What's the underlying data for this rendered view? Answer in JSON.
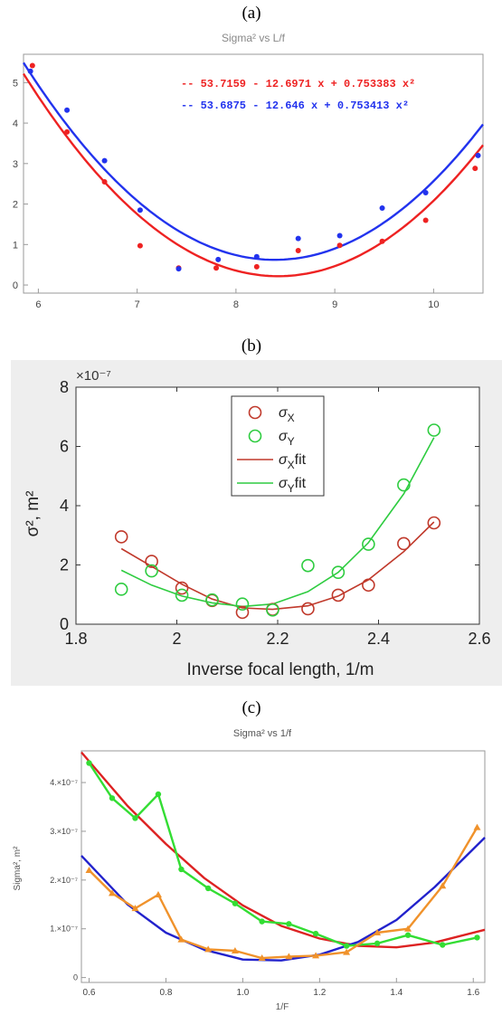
{
  "panel_labels": [
    "(a)",
    "(b)",
    "(c)"
  ],
  "chart_data": [
    {
      "type": "scatter",
      "title": "Sigma² vs L/f",
      "xlim": [
        5.85,
        10.5
      ],
      "ylim": [
        -0.2,
        5.7
      ],
      "xticks": [
        "6",
        "7",
        "8",
        "9",
        "10"
      ],
      "yticks": [
        "0",
        "1",
        "2",
        "3",
        "4",
        "5"
      ],
      "grid": false,
      "annotation_position": "top-right",
      "series": [
        {
          "color": "#ee2222",
          "fit_label": "-- 53.7159 - 12.6971 x + 0.753383 x²",
          "fit": [
            53.7159,
            -12.6971,
            0.753383
          ],
          "points": [
            [
              5.94,
              5.42
            ],
            [
              6.29,
              3.78
            ],
            [
              6.67,
              2.55
            ],
            [
              7.03,
              0.97
            ],
            [
              7.42,
              0.42
            ],
            [
              7.8,
              0.42
            ],
            [
              8.21,
              0.45
            ],
            [
              8.63,
              0.85
            ],
            [
              9.05,
              0.98
            ],
            [
              9.48,
              1.08
            ],
            [
              9.92,
              1.6
            ],
            [
              10.42,
              2.88
            ]
          ]
        },
        {
          "color": "#2233ee",
          "fit_label": "-- 53.6875 - 12.646 x + 0.753413 x²",
          "fit": [
            53.6875,
            -12.646,
            0.753413
          ],
          "points": [
            [
              5.92,
              5.28
            ],
            [
              6.29,
              4.32
            ],
            [
              6.67,
              3.07
            ],
            [
              7.03,
              1.85
            ],
            [
              7.42,
              0.4
            ],
            [
              7.82,
              0.63
            ],
            [
              8.21,
              0.7
            ],
            [
              8.63,
              1.15
            ],
            [
              9.05,
              1.22
            ],
            [
              9.48,
              1.9
            ],
            [
              9.92,
              2.28
            ],
            [
              10.45,
              3.2
            ]
          ]
        }
      ]
    },
    {
      "type": "scatter",
      "xlabel": "Inverse focal length, 1/m",
      "ylabel": "σ², m²",
      "multiplier": "×10⁻⁷",
      "xlim": [
        1.8,
        2.6
      ],
      "ylim": [
        0,
        8
      ],
      "xticks": [
        "1.8",
        "2",
        "2.2",
        "2.4",
        "2.6"
      ],
      "yticks": [
        "0",
        "2",
        "4",
        "6",
        "8"
      ],
      "grid": false,
      "legend_position": "top-center",
      "legend": [
        "σX",
        "σY",
        "σXfit",
        "σYfit"
      ],
      "series": [
        {
          "name": "σX",
          "color": "#c0392b",
          "points": [
            [
              1.89,
              2.95
            ],
            [
              1.95,
              2.12
            ],
            [
              2.01,
              1.22
            ],
            [
              2.07,
              0.8
            ],
            [
              2.13,
              0.4
            ],
            [
              2.19,
              0.5
            ],
            [
              2.26,
              0.52
            ],
            [
              2.32,
              0.98
            ],
            [
              2.38,
              1.32
            ],
            [
              2.45,
              2.72
            ],
            [
              2.51,
              3.42
            ]
          ],
          "fit": [
            [
              1.89,
              2.55
            ],
            [
              1.95,
              1.95
            ],
            [
              2.01,
              1.35
            ],
            [
              2.07,
              0.85
            ],
            [
              2.13,
              0.55
            ],
            [
              2.19,
              0.5
            ],
            [
              2.26,
              0.62
            ],
            [
              2.32,
              0.95
            ],
            [
              2.38,
              1.5
            ],
            [
              2.45,
              2.45
            ],
            [
              2.51,
              3.45
            ]
          ]
        },
        {
          "name": "σY",
          "color": "#2ecc40",
          "points": [
            [
              1.89,
              1.18
            ],
            [
              1.95,
              1.8
            ],
            [
              2.01,
              0.98
            ],
            [
              2.07,
              0.82
            ],
            [
              2.13,
              0.68
            ],
            [
              2.19,
              0.48
            ],
            [
              2.26,
              1.98
            ],
            [
              2.32,
              1.75
            ],
            [
              2.38,
              2.7
            ],
            [
              2.45,
              4.7
            ],
            [
              2.51,
              6.55
            ]
          ],
          "fit": [
            [
              1.89,
              1.82
            ],
            [
              1.95,
              1.32
            ],
            [
              2.01,
              0.95
            ],
            [
              2.07,
              0.72
            ],
            [
              2.13,
              0.6
            ],
            [
              2.19,
              0.68
            ],
            [
              2.26,
              1.1
            ],
            [
              2.32,
              1.75
            ],
            [
              2.38,
              2.75
            ],
            [
              2.45,
              4.4
            ],
            [
              2.51,
              6.3
            ]
          ]
        }
      ]
    },
    {
      "type": "line",
      "title": "Sigma² vs 1/f",
      "xlabel": "1/F",
      "ylabel": "Sigma², m²",
      "xlim": [
        0.58,
        1.63
      ],
      "ylim": [
        -0.1,
        4.65
      ],
      "xticks": [
        "0.6",
        "0.8",
        "1.0",
        "1.2",
        "1.4",
        "1.6"
      ],
      "yticks": [
        "0",
        "1.×10⁻⁷",
        "2.×10⁻⁷",
        "3.×10⁻⁷",
        "4.×10⁻⁷"
      ],
      "grid": false,
      "series": [
        {
          "color": "#33dd33",
          "marker": "circle",
          "points": [
            [
              0.6,
              4.4
            ],
            [
              0.66,
              3.68
            ],
            [
              0.72,
              3.27
            ],
            [
              0.78,
              3.76
            ],
            [
              0.84,
              2.22
            ],
            [
              0.91,
              1.83
            ],
            [
              0.98,
              1.52
            ],
            [
              1.05,
              1.15
            ],
            [
              1.12,
              1.1
            ],
            [
              1.19,
              0.9
            ],
            [
              1.27,
              0.65
            ],
            [
              1.35,
              0.7
            ],
            [
              1.43,
              0.87
            ],
            [
              1.52,
              0.67
            ],
            [
              1.61,
              0.82
            ]
          ]
        },
        {
          "color": "#f0922b",
          "marker": "triangle",
          "points": [
            [
              0.6,
              2.2
            ],
            [
              0.66,
              1.73
            ],
            [
              0.72,
              1.42
            ],
            [
              0.78,
              1.7
            ],
            [
              0.84,
              0.78
            ],
            [
              0.91,
              0.58
            ],
            [
              0.98,
              0.55
            ],
            [
              1.05,
              0.4
            ],
            [
              1.12,
              0.43
            ],
            [
              1.19,
              0.45
            ],
            [
              1.27,
              0.52
            ],
            [
              1.35,
              0.92
            ],
            [
              1.43,
              1.0
            ],
            [
              1.52,
              1.88
            ],
            [
              1.61,
              3.08
            ]
          ]
        },
        {
          "color": "#dd2222",
          "marker": "none",
          "fit": [
            [
              0.58,
              4.62
            ],
            [
              0.7,
              3.52
            ],
            [
              0.8,
              2.74
            ],
            [
              0.9,
              2.04
            ],
            [
              1.0,
              1.48
            ],
            [
              1.1,
              1.06
            ],
            [
              1.2,
              0.8
            ],
            [
              1.3,
              0.65
            ],
            [
              1.4,
              0.62
            ],
            [
              1.5,
              0.72
            ],
            [
              1.63,
              0.98
            ]
          ]
        },
        {
          "color": "#2222cc",
          "marker": "none",
          "fit": [
            [
              0.58,
              2.5
            ],
            [
              0.7,
              1.5
            ],
            [
              0.8,
              0.92
            ],
            [
              0.9,
              0.57
            ],
            [
              1.0,
              0.37
            ],
            [
              1.1,
              0.35
            ],
            [
              1.2,
              0.47
            ],
            [
              1.3,
              0.73
            ],
            [
              1.4,
              1.18
            ],
            [
              1.5,
              1.86
            ],
            [
              1.63,
              2.87
            ]
          ]
        }
      ]
    }
  ]
}
